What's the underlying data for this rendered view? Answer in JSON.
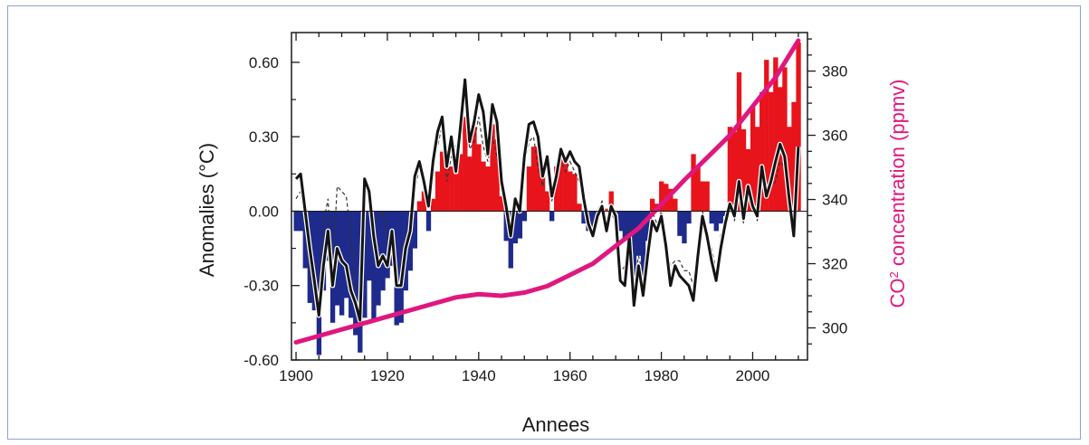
{
  "chart_data": {
    "type": "bar",
    "xlabel": "Annees",
    "ylabel": "Anomalies (°C)",
    "y2label_prefix": "CO",
    "y2label_sup": "2",
    "y2label_suffix": " concentration (ppmv)",
    "xlim": [
      1899,
      2012
    ],
    "ylim": [
      -0.6,
      0.72
    ],
    "y2lim": [
      290,
      392
    ],
    "xticks": [
      1900,
      1920,
      1940,
      1960,
      1980,
      2000
    ],
    "yticks": [
      "0.60",
      "0.30",
      "0.00",
      "-0.30",
      "-0.60"
    ],
    "y2ticks": [
      300,
      320,
      340,
      360,
      380
    ],
    "grid": false,
    "colors": {
      "positive_bar": "#e8141b",
      "negative_bar": "#1e2a8c",
      "co2_line": "#e0177f",
      "anomaly_line": "#141414",
      "dashed_line": "#333333"
    },
    "years": [
      1900,
      1901,
      1902,
      1903,
      1904,
      1905,
      1906,
      1907,
      1908,
      1909,
      1910,
      1911,
      1912,
      1913,
      1914,
      1915,
      1916,
      1917,
      1918,
      1919,
      1920,
      1921,
      1922,
      1923,
      1924,
      1925,
      1926,
      1927,
      1928,
      1929,
      1930,
      1931,
      1932,
      1933,
      1934,
      1935,
      1936,
      1937,
      1938,
      1939,
      1940,
      1941,
      1942,
      1943,
      1944,
      1945,
      1946,
      1947,
      1948,
      1949,
      1950,
      1951,
      1952,
      1953,
      1954,
      1955,
      1956,
      1957,
      1958,
      1959,
      1960,
      1961,
      1962,
      1963,
      1964,
      1965,
      1966,
      1967,
      1968,
      1969,
      1970,
      1971,
      1972,
      1973,
      1974,
      1975,
      1976,
      1977,
      1978,
      1979,
      1980,
      1981,
      1982,
      1983,
      1984,
      1985,
      1986,
      1987,
      1988,
      1989,
      1990,
      1991,
      1992,
      1993,
      1994,
      1995,
      1996,
      1997,
      1998,
      1999,
      2000,
      2001,
      2002,
      2003,
      2004,
      2005,
      2006,
      2007,
      2008,
      2009,
      2010
    ],
    "series": [
      {
        "type": "bar",
        "values": [
          -0.08,
          -0.08,
          -0.23,
          -0.37,
          -0.4,
          -0.58,
          -0.32,
          -0.2,
          -0.45,
          -0.38,
          -0.42,
          -0.35,
          -0.43,
          -0.5,
          -0.57,
          -0.43,
          -0.28,
          -0.44,
          -0.38,
          -0.32,
          -0.27,
          -0.22,
          -0.46,
          -0.45,
          -0.32,
          -0.24,
          -0.15,
          0.04,
          0.08,
          -0.08,
          0.05,
          0.16,
          0.24,
          0.24,
          0.18,
          0.15,
          0.23,
          0.38,
          0.22,
          0.34,
          0.27,
          0.2,
          0.18,
          0.35,
          0.29,
          0.06,
          -0.12,
          -0.23,
          -0.13,
          -0.11,
          -0.04,
          0.18,
          0.26,
          0.26,
          0.16,
          0.08,
          -0.04,
          0.18,
          0.25,
          0.2,
          0.16,
          0.15,
          0.03,
          -0.05,
          -0.08,
          -0.1,
          -0.02,
          -0.01,
          0.01,
          0.08,
          -0.01,
          -0.08,
          -0.12,
          -0.15,
          -0.26,
          -0.18,
          -0.28,
          -0.12,
          0.05,
          0.03,
          0.12,
          0.11,
          0.09,
          0.05,
          -0.1,
          -0.13,
          -0.05,
          0.23,
          0.18,
          0.12,
          0.12,
          -0.05,
          -0.08,
          -0.05,
          -0.02,
          0.34,
          0.32,
          0.56,
          0.33,
          0.25,
          0.42,
          0.34,
          0.48,
          0.61,
          0.48,
          0.62,
          0.5,
          0.58,
          0.34,
          0.44,
          0.68
        ]
      },
      {
        "type": "line",
        "values": [
          0.13,
          0.15,
          0.0,
          -0.15,
          -0.28,
          -0.42,
          -0.22,
          -0.08,
          -0.3,
          -0.15,
          -0.2,
          -0.22,
          -0.32,
          -0.37,
          -0.44,
          0.13,
          0.08,
          -0.1,
          -0.22,
          -0.18,
          -0.22,
          -0.08,
          -0.3,
          -0.3,
          -0.15,
          -0.08,
          0.14,
          0.2,
          0.12,
          0.02,
          0.2,
          0.32,
          0.38,
          0.18,
          0.3,
          0.16,
          0.34,
          0.53,
          0.28,
          0.36,
          0.47,
          0.4,
          0.23,
          0.43,
          0.36,
          0.12,
          0.02,
          -0.1,
          0.05,
          0.0,
          0.22,
          0.35,
          0.36,
          0.3,
          0.14,
          0.22,
          0.06,
          0.14,
          0.25,
          0.2,
          0.24,
          0.2,
          0.18,
          0.05,
          -0.05,
          -0.1,
          -0.02,
          0.02,
          -0.08,
          0.02,
          -0.02,
          -0.28,
          -0.3,
          -0.1,
          -0.38,
          -0.22,
          -0.34,
          -0.18,
          -0.04,
          -0.08,
          -0.02,
          -0.14,
          -0.3,
          -0.22,
          -0.26,
          -0.28,
          -0.3,
          -0.36,
          -0.18,
          -0.02,
          -0.1,
          -0.2,
          -0.28,
          -0.15,
          -0.05,
          0.03,
          -0.02,
          0.12,
          -0.03,
          0.1,
          0.02,
          -0.02,
          0.18,
          0.06,
          0.12,
          0.2,
          0.27,
          0.22,
          0.05,
          -0.1,
          0.26
        ]
      },
      {
        "type": "line",
        "values": [
          0.05,
          0.08,
          -0.05,
          -0.25,
          -0.35,
          -0.3,
          -0.05,
          0.05,
          -0.25,
          0.1,
          0.08,
          0.06,
          -0.1,
          -0.35,
          -0.38,
          0.1,
          0.06,
          -0.05,
          -0.03,
          0.0,
          -0.12,
          -0.22,
          -0.26,
          -0.2,
          -0.1,
          -0.06,
          0.08,
          0.18,
          0.1,
          0.05,
          0.22,
          0.26,
          0.35,
          0.12,
          0.22,
          0.26,
          0.3,
          0.48,
          0.25,
          0.28,
          0.38,
          0.26,
          0.2,
          0.3,
          0.22,
          0.1,
          0.02,
          -0.05,
          0.02,
          -0.02,
          0.18,
          0.28,
          0.3,
          0.18,
          0.1,
          0.2,
          0.04,
          0.12,
          0.2,
          0.16,
          0.2,
          0.16,
          0.12,
          0.04,
          -0.06,
          -0.05,
          0.0,
          0.04,
          -0.04,
          0.0,
          -0.05,
          -0.25,
          -0.22,
          -0.06,
          -0.3,
          -0.18,
          -0.26,
          -0.14,
          0.0,
          -0.05,
          0.0,
          -0.12,
          -0.22,
          -0.2,
          -0.2,
          -0.24,
          -0.24,
          -0.3,
          -0.14,
          0.0,
          -0.08,
          -0.15,
          -0.24,
          -0.1,
          -0.02,
          0.04,
          -0.04,
          0.1,
          -0.05,
          0.06,
          0.04,
          -0.04,
          0.16,
          0.08,
          0.1,
          0.12,
          0.2,
          0.18,
          0.02,
          -0.08,
          0.2
        ]
      },
      {
        "type": "line",
        "axis": "right",
        "x": [
          1900,
          1905,
          1910,
          1915,
          1920,
          1925,
          1930,
          1935,
          1940,
          1945,
          1950,
          1955,
          1960,
          1965,
          1970,
          1975,
          1980,
          1985,
          1990,
          1995,
          2000,
          2005,
          2010
        ],
        "values": [
          295.5,
          297.5,
          299.5,
          301.5,
          303.5,
          305.5,
          307.5,
          309.5,
          310.5,
          310.0,
          311.0,
          313.0,
          316.5,
          320.0,
          325.5,
          331.0,
          338.5,
          346.0,
          353.0,
          360.0,
          369.0,
          378.0,
          389.5
        ]
      }
    ]
  }
}
